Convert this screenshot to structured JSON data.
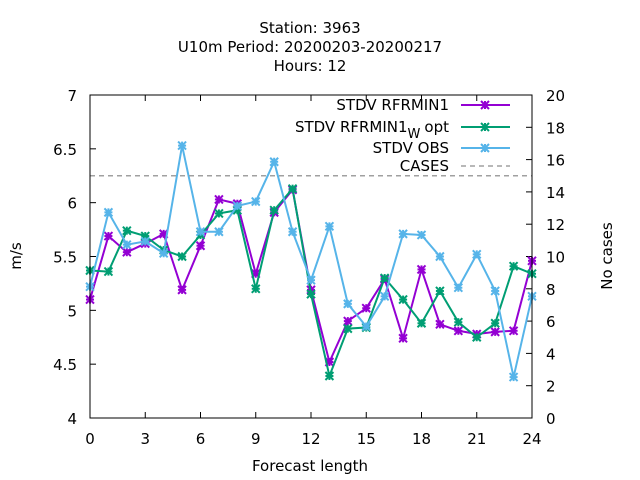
{
  "chart_data": {
    "type": "line",
    "title_lines": [
      "Station:      3963",
      "U10m   Period: 20200203-20200217",
      "Hours:  12"
    ],
    "xlabel": "Forecast length",
    "ylabel": "m/s",
    "y2label": "No cases",
    "xlim": [
      0,
      24
    ],
    "ylim": [
      4,
      7
    ],
    "y2lim": [
      0,
      20
    ],
    "xticks": [
      0,
      3,
      6,
      9,
      12,
      15,
      18,
      21,
      24
    ],
    "yticks": [
      4,
      4.5,
      5,
      5.5,
      6,
      6.5,
      7
    ],
    "y2ticks": [
      0,
      2,
      4,
      6,
      8,
      10,
      12,
      14,
      16,
      18,
      20
    ],
    "ytick_labels": [
      "4",
      "4.5",
      "5",
      "5.5",
      "6",
      "6.5",
      "7"
    ],
    "grid": false,
    "legend_position": "top-right",
    "x": [
      0,
      1,
      2,
      3,
      4,
      5,
      6,
      7,
      8,
      9,
      10,
      11,
      12,
      13,
      14,
      15,
      16,
      17,
      18,
      19,
      20,
      21,
      22,
      23,
      24
    ],
    "series": [
      {
        "name": "STDV RFRMIN1",
        "color": "#9400d3",
        "values": [
          5.1,
          5.69,
          5.54,
          5.62,
          5.71,
          5.19,
          5.6,
          6.03,
          5.99,
          5.34,
          5.91,
          6.12,
          5.19,
          4.52,
          4.9,
          5.02,
          5.29,
          4.74,
          5.38,
          4.87,
          4.81,
          4.78,
          4.8,
          4.81,
          5.46
        ]
      },
      {
        "name": "STDV RFRMIN1",
        "name_subscript": "W",
        "name_suffix": "opt",
        "color": "#009e73",
        "values": [
          5.37,
          5.36,
          5.74,
          5.69,
          5.56,
          5.5,
          5.7,
          5.9,
          5.93,
          5.2,
          5.93,
          6.13,
          5.15,
          4.39,
          4.83,
          4.84,
          5.3,
          5.1,
          4.88,
          5.18,
          4.89,
          4.75,
          4.88,
          5.41,
          5.34
        ]
      },
      {
        "name": "STDV OBS",
        "color": "#56b4e9",
        "values": [
          5.22,
          5.91,
          5.61,
          5.64,
          5.53,
          6.53,
          5.73,
          5.73,
          5.97,
          6.01,
          6.38,
          5.73,
          5.28,
          5.78,
          5.06,
          4.85,
          5.13,
          5.71,
          5.7,
          5.5,
          5.21,
          5.52,
          5.18,
          4.38,
          5.13
        ]
      },
      {
        "name": "CASES",
        "color": "#a0a0a0",
        "dashed": true,
        "axis": "y2",
        "constant": 15
      }
    ]
  }
}
